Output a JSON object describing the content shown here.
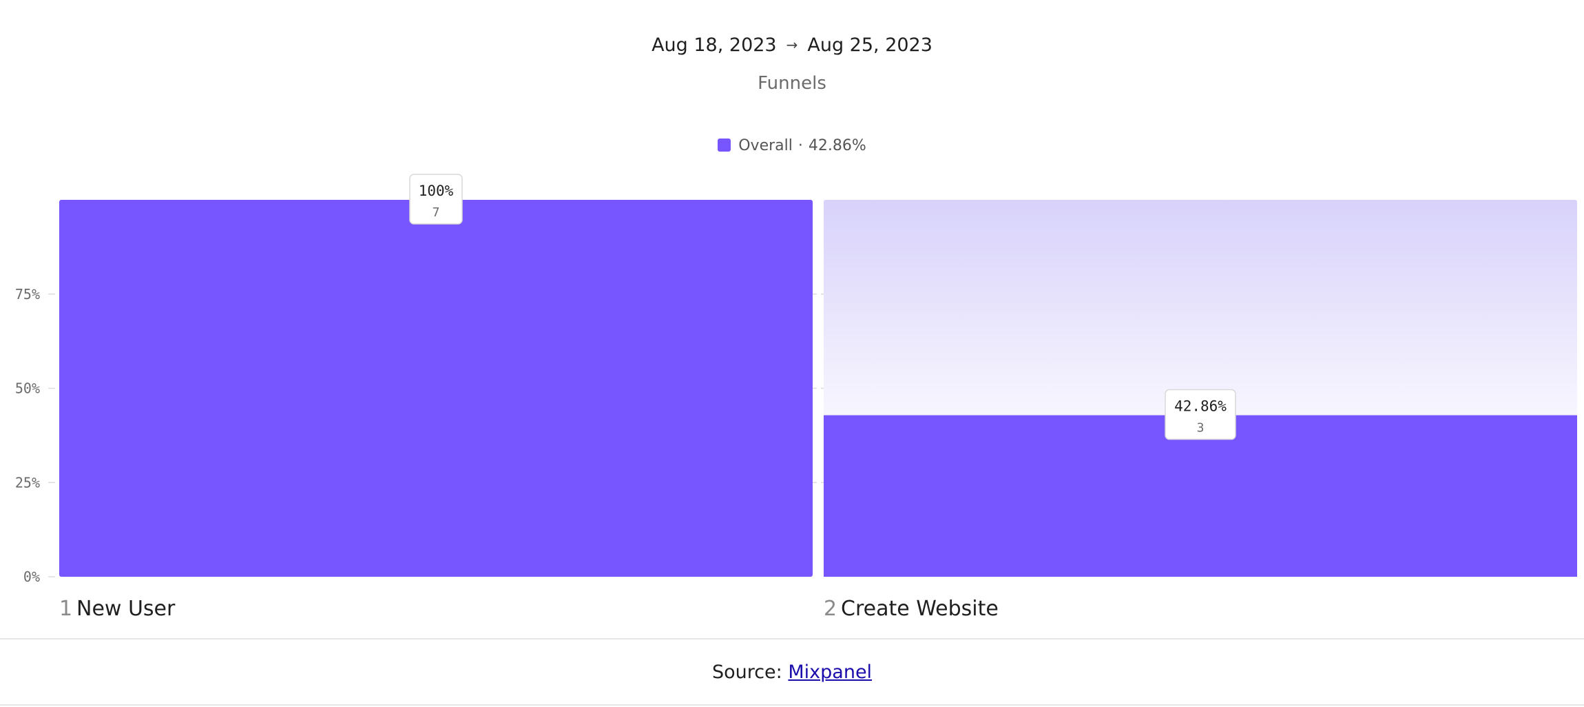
{
  "header": {
    "date_start": "Aug 18, 2023",
    "date_arrow": "→",
    "date_end": "Aug 25, 2023",
    "subtitle": "Funnels"
  },
  "legend": {
    "label": "Overall",
    "separator": "·",
    "value": "42.86%"
  },
  "footer": {
    "source_label": "Source:",
    "source_link": "Mixpanel"
  },
  "colors": {
    "bar": "#7856ff",
    "dropoff_top": "#d8d2fb",
    "dropoff_bottom": "#f7f6fe",
    "grid": "#dcdcdc"
  },
  "chart_data": {
    "type": "bar",
    "title": "Funnels",
    "subtitle": "Aug 18, 2023 → Aug 25, 2023",
    "categories": [
      "New User",
      "Create Website"
    ],
    "step_numbers": [
      "1",
      "2"
    ],
    "series": [
      {
        "name": "Overall",
        "values": [
          100,
          42.86
        ],
        "value_labels": [
          "100%",
          "42.86%"
        ],
        "counts": [
          "7",
          "3"
        ]
      }
    ],
    "ylim": [
      0,
      100
    ],
    "yticks": [
      0,
      25,
      50,
      75
    ],
    "ytick_labels": [
      "0%",
      "25%",
      "50%",
      "75%"
    ],
    "grid": true,
    "legend_position": "top-center"
  }
}
